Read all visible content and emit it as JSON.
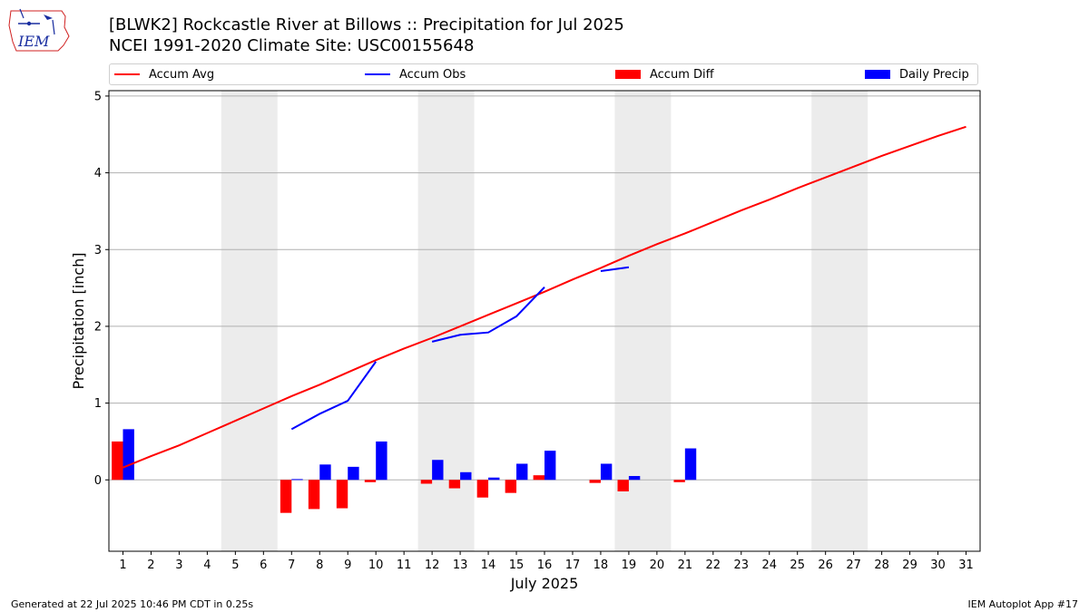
{
  "logo": {
    "text": "IEM"
  },
  "title_line1": "[BLWK2] Rockcastle River at Billows :: Precipitation for Jul 2025",
  "title_line2": "NCEI 1991-2020 Climate Site: USC00155648",
  "legend": [
    {
      "label": "Accum Avg",
      "kind": "line",
      "color": "#ff0000"
    },
    {
      "label": "Accum Obs",
      "kind": "line",
      "color": "#0000ff"
    },
    {
      "label": "Accum Diff",
      "kind": "box",
      "color": "#ff0000"
    },
    {
      "label": "Daily Precip",
      "kind": "box",
      "color": "#0000ff"
    }
  ],
  "footer_left": "Generated at 22 Jul 2025 10:46 PM CDT in 0.25s",
  "footer_right": "IEM Autoplot App #17",
  "chart_data": {
    "type": "bar",
    "title": "[BLWK2] Rockcastle River at Billows :: Precipitation for Jul 2025",
    "xlabel": "July 2025",
    "ylabel": "Precipitation [inch]",
    "x": [
      1,
      2,
      3,
      4,
      5,
      6,
      7,
      8,
      9,
      10,
      11,
      12,
      13,
      14,
      15,
      16,
      17,
      18,
      19,
      20,
      21,
      22,
      23,
      24,
      25,
      26,
      27,
      28,
      29,
      30,
      31
    ],
    "xlim": [
      0.5,
      31.5
    ],
    "ylim": [
      -0.93,
      5.07
    ],
    "yticks": [
      0,
      1,
      2,
      3,
      4,
      5
    ],
    "grid": "horizontal",
    "weekend_bands": [
      [
        4.5,
        6.5
      ],
      [
        11.5,
        13.5
      ],
      [
        18.5,
        20.5
      ],
      [
        25.5,
        27.5
      ]
    ],
    "colors": {
      "avg": "#ff0000",
      "obs": "#0000ff",
      "diff": "#ff0000",
      "daily": "#0000ff",
      "weekend": "#ececec",
      "grid": "#b0b0b0"
    },
    "series": [
      {
        "name": "Accum Avg",
        "kind": "line",
        "values": [
          0.16,
          0.31,
          0.45,
          0.61,
          0.77,
          0.93,
          1.09,
          1.24,
          1.4,
          1.56,
          1.71,
          1.85,
          2.0,
          2.15,
          2.3,
          2.45,
          2.61,
          2.76,
          2.92,
          3.07,
          3.21,
          3.36,
          3.51,
          3.65,
          3.8,
          3.94,
          4.08,
          4.22,
          4.35,
          4.48,
          4.6
        ]
      },
      {
        "name": "Accum Obs",
        "kind": "line",
        "gaps": true,
        "values": [
          null,
          null,
          null,
          null,
          null,
          null,
          0.66,
          0.86,
          1.03,
          1.54,
          null,
          1.8,
          1.89,
          1.92,
          2.13,
          2.51,
          null,
          2.72,
          2.77,
          null,
          null,
          null,
          null,
          null,
          null,
          null,
          null,
          null,
          null,
          null,
          null
        ]
      },
      {
        "name": "Accum Diff",
        "kind": "bar",
        "values": [
          0.5,
          null,
          null,
          null,
          null,
          null,
          -0.43,
          -0.38,
          -0.37,
          -0.03,
          null,
          -0.05,
          -0.11,
          -0.23,
          -0.17,
          0.06,
          null,
          -0.04,
          -0.15,
          null,
          -0.03,
          null,
          null,
          null,
          null,
          null,
          null,
          null,
          null,
          null,
          null
        ]
      },
      {
        "name": "Daily Precip",
        "kind": "bar",
        "values": [
          0.66,
          null,
          null,
          null,
          null,
          null,
          0.01,
          0.2,
          0.17,
          0.5,
          null,
          0.26,
          0.1,
          0.03,
          0.21,
          0.38,
          null,
          0.21,
          0.05,
          null,
          0.41,
          null,
          null,
          null,
          null,
          null,
          null,
          null,
          null,
          null,
          null
        ]
      }
    ]
  }
}
